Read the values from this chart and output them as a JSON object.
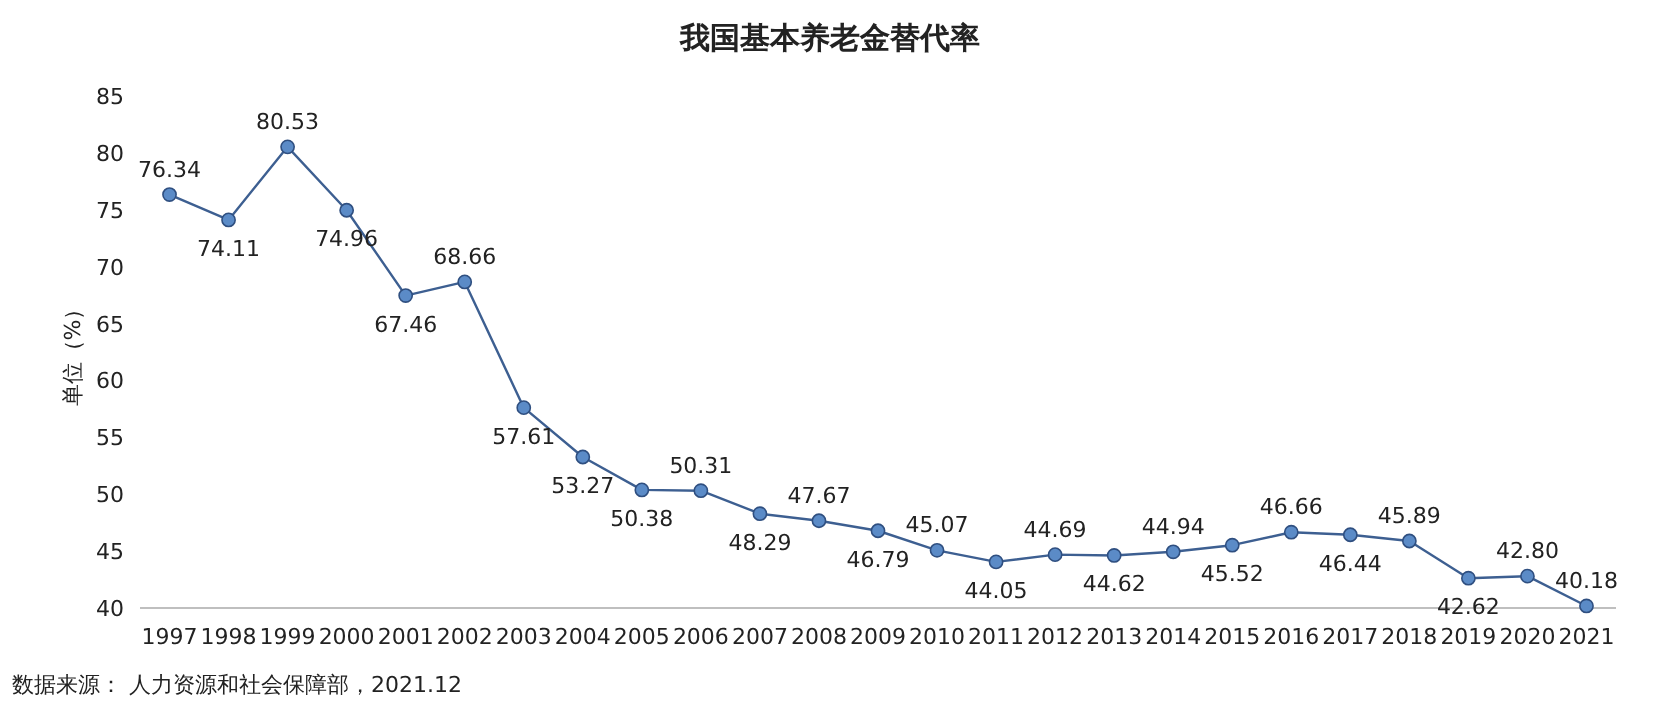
{
  "chart_data": {
    "type": "line",
    "title": "我国基本养老金替代率",
    "ylabel": "单位（%）",
    "categories": [
      "1997",
      "1998",
      "1999",
      "2000",
      "2001",
      "2002",
      "2003",
      "2004",
      "2005",
      "2006",
      "2007",
      "2008",
      "2009",
      "2010",
      "2011",
      "2012",
      "2013",
      "2014",
      "2015",
      "2016",
      "2017",
      "2018",
      "2019",
      "2020",
      "2021"
    ],
    "values": [
      76.34,
      74.11,
      80.53,
      74.96,
      67.46,
      68.66,
      57.61,
      53.27,
      50.38,
      50.31,
      48.29,
      47.67,
      46.79,
      45.07,
      44.05,
      44.69,
      44.62,
      44.94,
      45.52,
      46.66,
      46.44,
      45.89,
      42.62,
      42.8,
      40.18
    ],
    "color": "#5b8bc7",
    "ylim": [
      40,
      85
    ],
    "yticks": [
      40,
      45,
      50,
      55,
      60,
      65,
      70,
      75,
      80,
      85
    ],
    "value_labels": [
      "76.34",
      "74.11",
      "80.53",
      "74.96",
      "67.46",
      "68.66",
      "57.61",
      "53.27",
      "50.38",
      "50.31",
      "48.29",
      "47.67",
      "46.79",
      "45.07",
      "44.05",
      "44.69",
      "44.62",
      "44.94",
      "45.52",
      "46.66",
      "46.44",
      "45.89",
      "42.62",
      "42.80",
      "40.18"
    ],
    "marker": "circle",
    "line_style": "solid",
    "annotations": [
      "数据来源： 人力资源和社会保障部，2021.12"
    ]
  }
}
